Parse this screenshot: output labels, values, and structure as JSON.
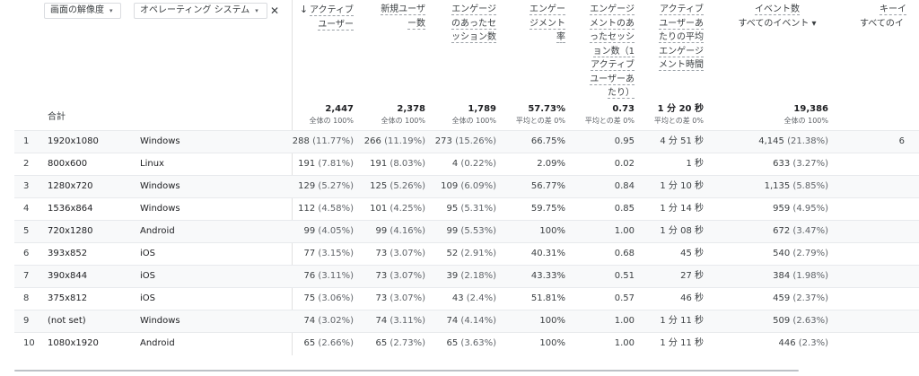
{
  "dimensions": [
    {
      "label": "画面の解像度"
    },
    {
      "label": "オペレーティング システム"
    }
  ],
  "icons": {
    "dropdown": "▾",
    "close": "✕",
    "sort_down": "↓"
  },
  "headers": {
    "active_users": [
      "アクティブ",
      "ユーザー"
    ],
    "new_users": [
      "新規ユーザ",
      "ー数"
    ],
    "engaged_sessions": [
      "エンゲージ",
      "のあったセ",
      "ッション数"
    ],
    "engagement_rate": [
      "エンゲー",
      "ジメント",
      "率"
    ],
    "engaged_per_user": [
      "エンゲージ",
      "メントのあ",
      "ったセッシ",
      "ョン数（1",
      "アクティブ",
      "ユーザーあ",
      "たり）"
    ],
    "avg_engagement_time": [
      "アクティブ",
      "ユーザーあ",
      "たりの平均",
      "エンゲージ",
      "メント時間"
    ],
    "event_count": "イベント数",
    "event_filter": "すべてのイベント",
    "key_events": "キーイ",
    "key_events_filter": "すべてのイ"
  },
  "totals": {
    "label": "合計",
    "active_users": {
      "value": "2,447",
      "sub": "全体の 100%"
    },
    "new_users": {
      "value": "2,378",
      "sub": "全体の 100%"
    },
    "engaged_sessions": {
      "value": "1,789",
      "sub": "全体の 100%"
    },
    "engagement_rate": {
      "value": "57.73%",
      "sub": "平均との差 0%"
    },
    "engaged_per_user": {
      "value": "0.73",
      "sub": "平均との差 0%"
    },
    "avg_engagement_time": {
      "value": "1 分 20 秒",
      "sub": "平均との差 0%"
    },
    "event_count": {
      "value": "19,386",
      "sub": "全体の 100%"
    }
  },
  "rows": [
    {
      "idx": "1",
      "res": "1920x1080",
      "os": "Windows",
      "au": "288",
      "au_p": "(11.77%)",
      "nu": "266",
      "nu_p": "(11.19%)",
      "es": "273",
      "es_p": "(15.26%)",
      "er": "66.75%",
      "epu": "0.95",
      "aet": "4 分 51 秒",
      "ev": "4,145",
      "ev_p": "(21.38%)",
      "ke": "6"
    },
    {
      "idx": "2",
      "res": "800x600",
      "os": "Linux",
      "au": "191",
      "au_p": "(7.81%)",
      "nu": "191",
      "nu_p": "(8.03%)",
      "es": "4",
      "es_p": "(0.22%)",
      "er": "2.09%",
      "epu": "0.02",
      "aet": "1 秒",
      "ev": "633",
      "ev_p": "(3.27%)",
      "ke": ""
    },
    {
      "idx": "3",
      "res": "1280x720",
      "os": "Windows",
      "au": "129",
      "au_p": "(5.27%)",
      "nu": "125",
      "nu_p": "(5.26%)",
      "es": "109",
      "es_p": "(6.09%)",
      "er": "56.77%",
      "epu": "0.84",
      "aet": "1 分 10 秒",
      "ev": "1,135",
      "ev_p": "(5.85%)",
      "ke": ""
    },
    {
      "idx": "4",
      "res": "1536x864",
      "os": "Windows",
      "au": "112",
      "au_p": "(4.58%)",
      "nu": "101",
      "nu_p": "(4.25%)",
      "es": "95",
      "es_p": "(5.31%)",
      "er": "59.75%",
      "epu": "0.85",
      "aet": "1 分 14 秒",
      "ev": "959",
      "ev_p": "(4.95%)",
      "ke": ""
    },
    {
      "idx": "5",
      "res": "720x1280",
      "os": "Android",
      "au": "99",
      "au_p": "(4.05%)",
      "nu": "99",
      "nu_p": "(4.16%)",
      "es": "99",
      "es_p": "(5.53%)",
      "er": "100%",
      "epu": "1.00",
      "aet": "1 分 08 秒",
      "ev": "672",
      "ev_p": "(3.47%)",
      "ke": ""
    },
    {
      "idx": "6",
      "res": "393x852",
      "os": "iOS",
      "au": "77",
      "au_p": "(3.15%)",
      "nu": "73",
      "nu_p": "(3.07%)",
      "es": "52",
      "es_p": "(2.91%)",
      "er": "40.31%",
      "epu": "0.68",
      "aet": "45 秒",
      "ev": "540",
      "ev_p": "(2.79%)",
      "ke": ""
    },
    {
      "idx": "7",
      "res": "390x844",
      "os": "iOS",
      "au": "76",
      "au_p": "(3.11%)",
      "nu": "73",
      "nu_p": "(3.07%)",
      "es": "39",
      "es_p": "(2.18%)",
      "er": "43.33%",
      "epu": "0.51",
      "aet": "27 秒",
      "ev": "384",
      "ev_p": "(1.98%)",
      "ke": ""
    },
    {
      "idx": "8",
      "res": "375x812",
      "os": "iOS",
      "au": "75",
      "au_p": "(3.06%)",
      "nu": "73",
      "nu_p": "(3.07%)",
      "es": "43",
      "es_p": "(2.4%)",
      "er": "51.81%",
      "epu": "0.57",
      "aet": "46 秒",
      "ev": "459",
      "ev_p": "(2.37%)",
      "ke": ""
    },
    {
      "idx": "9",
      "res": "(not set)",
      "os": "Windows",
      "au": "74",
      "au_p": "(3.02%)",
      "nu": "74",
      "nu_p": "(3.11%)",
      "es": "74",
      "es_p": "(4.14%)",
      "er": "100%",
      "epu": "1.00",
      "aet": "1 分 11 秒",
      "ev": "509",
      "ev_p": "(2.63%)",
      "ke": ""
    },
    {
      "idx": "10",
      "res": "1080x1920",
      "os": "Android",
      "au": "65",
      "au_p": "(2.66%)",
      "nu": "65",
      "nu_p": "(2.73%)",
      "es": "65",
      "es_p": "(3.63%)",
      "er": "100%",
      "epu": "1.00",
      "aet": "1 分 11 秒",
      "ev": "446",
      "ev_p": "(2.3%)",
      "ke": ""
    }
  ]
}
